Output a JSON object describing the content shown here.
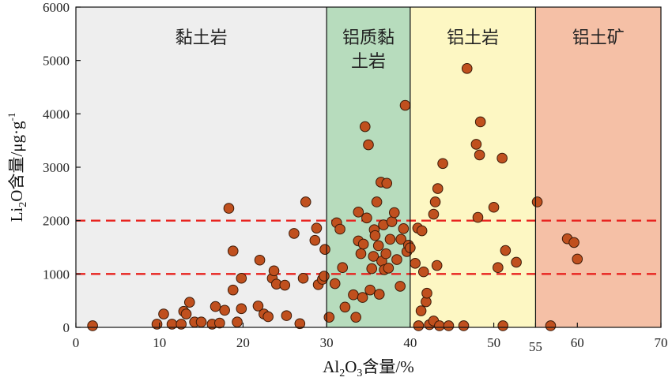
{
  "chart_data": {
    "type": "scatter",
    "xlim": [
      0,
      70
    ],
    "ylim": [
      0,
      6000
    ],
    "xticks": [
      0,
      10,
      20,
      30,
      40,
      50,
      55,
      60,
      70
    ],
    "yticks": [
      0,
      1000,
      2000,
      3000,
      4000,
      5000,
      6000
    ],
    "xlabel": {
      "main": "Al",
      "sub1": "2",
      "mid": "O",
      "sub2": "3",
      "rest": "含量/%"
    },
    "ylabel": {
      "main": "Li",
      "sub": "2",
      "mid": "O含量/μg·g",
      "sup": "-1"
    },
    "grid": false,
    "reference_lines": [
      {
        "y": 1000,
        "color": "#e8231f",
        "style": "dashed"
      },
      {
        "y": 2000,
        "color": "#e8231f",
        "style": "dashed"
      }
    ],
    "zones": [
      {
        "label_lines": [
          "黏土岩"
        ],
        "x_start": 0,
        "x_end": 30,
        "color": "#eeeeee"
      },
      {
        "label_lines": [
          "铝质黏",
          "土岩"
        ],
        "x_start": 30,
        "x_end": 40,
        "color": "#b7dcbd"
      },
      {
        "label_lines": [
          "铝土岩"
        ],
        "x_start": 40,
        "x_end": 55,
        "color": "#fdf7c3"
      },
      {
        "label_lines": [
          "铝土矿"
        ],
        "x_start": 55,
        "x_end": 70,
        "color": "#f5c0a6"
      }
    ],
    "marker_color": "#c0501e",
    "marker_edge": "#3a1a08",
    "points": [
      [
        2,
        30
      ],
      [
        9.7,
        60
      ],
      [
        10.5,
        250
      ],
      [
        11.5,
        60
      ],
      [
        12.6,
        60
      ],
      [
        12.9,
        300
      ],
      [
        13.2,
        250
      ],
      [
        13.6,
        470
      ],
      [
        14.2,
        100
      ],
      [
        15,
        100
      ],
      [
        16.3,
        60
      ],
      [
        16.7,
        390
      ],
      [
        17.2,
        80
      ],
      [
        17.8,
        320
      ],
      [
        18.3,
        2230
      ],
      [
        18.8,
        1430
      ],
      [
        18.8,
        700
      ],
      [
        19.3,
        100
      ],
      [
        19.8,
        920
      ],
      [
        19.8,
        350
      ],
      [
        21.8,
        400
      ],
      [
        22,
        1260
      ],
      [
        22.5,
        250
      ],
      [
        23,
        200
      ],
      [
        23.5,
        920
      ],
      [
        23.7,
        1060
      ],
      [
        24,
        810
      ],
      [
        25,
        790
      ],
      [
        25.2,
        220
      ],
      [
        26.1,
        1760
      ],
      [
        26.8,
        70
      ],
      [
        27.2,
        920
      ],
      [
        27.5,
        2350
      ],
      [
        28.8,
        1860
      ],
      [
        28.6,
        1630
      ],
      [
        29,
        800
      ],
      [
        29.5,
        900
      ],
      [
        29.7,
        960
      ],
      [
        29.8,
        1460
      ],
      [
        30.3,
        190
      ],
      [
        31,
        820
      ],
      [
        31.2,
        1960
      ],
      [
        31.6,
        1840
      ],
      [
        31.9,
        1120
      ],
      [
        32.2,
        380
      ],
      [
        33.2,
        610
      ],
      [
        33.5,
        190
      ],
      [
        33.8,
        2160
      ],
      [
        33.8,
        1620
      ],
      [
        34.1,
        1380
      ],
      [
        34.3,
        560
      ],
      [
        34.4,
        1560
      ],
      [
        34.6,
        3760
      ],
      [
        34.8,
        2050
      ],
      [
        35,
        3420
      ],
      [
        35.2,
        700
      ],
      [
        35.4,
        1100
      ],
      [
        35.6,
        1330
      ],
      [
        35.7,
        1830
      ],
      [
        35.8,
        1720
      ],
      [
        36,
        2350
      ],
      [
        36.2,
        1530
      ],
      [
        36.3,
        620
      ],
      [
        36.5,
        2720
      ],
      [
        36.6,
        1240
      ],
      [
        36.8,
        1920
      ],
      [
        36.9,
        1080
      ],
      [
        37.1,
        1380
      ],
      [
        37.2,
        2700
      ],
      [
        37.4,
        1110
      ],
      [
        37.6,
        1650
      ],
      [
        37.8,
        1980
      ],
      [
        38.1,
        2150
      ],
      [
        38.4,
        1270
      ],
      [
        38.8,
        770
      ],
      [
        38.9,
        1650
      ],
      [
        39.2,
        1850
      ],
      [
        39.4,
        4160
      ],
      [
        39.6,
        1420
      ],
      [
        39.8,
        1540
      ],
      [
        40,
        1490
      ],
      [
        40.6,
        1200
      ],
      [
        40.9,
        1860
      ],
      [
        41,
        30
      ],
      [
        41.3,
        310
      ],
      [
        41.4,
        1810
      ],
      [
        41.6,
        1040
      ],
      [
        41.9,
        480
      ],
      [
        42,
        640
      ],
      [
        42.3,
        50
      ],
      [
        42.8,
        120
      ],
      [
        42.8,
        2120
      ],
      [
        43,
        2350
      ],
      [
        43.2,
        1160
      ],
      [
        43.3,
        2600
      ],
      [
        43.5,
        30
      ],
      [
        43.9,
        3070
      ],
      [
        44.6,
        30
      ],
      [
        46.4,
        30
      ],
      [
        46.8,
        4850
      ],
      [
        47.9,
        3430
      ],
      [
        48.1,
        2060
      ],
      [
        48.3,
        3230
      ],
      [
        48.4,
        3850
      ],
      [
        50,
        2250
      ],
      [
        50.5,
        1120
      ],
      [
        51,
        3170
      ],
      [
        51.1,
        30
      ],
      [
        51.4,
        1440
      ],
      [
        52.7,
        1220
      ],
      [
        55.2,
        2350
      ],
      [
        56.8,
        30
      ],
      [
        58.8,
        1660
      ],
      [
        59.6,
        1590
      ],
      [
        60,
        1280
      ]
    ]
  }
}
